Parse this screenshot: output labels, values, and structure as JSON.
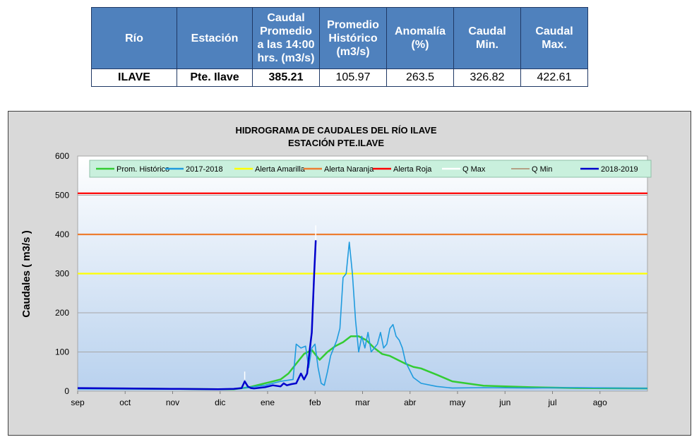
{
  "table": {
    "headers": [
      "Río",
      "Estación",
      "Caudal Promedio a las 14:00 hrs. (m3/s)",
      "Promedio Histórico (m3/s)",
      "Anomalía (%)",
      "Caudal Min.",
      "Caudal Max."
    ],
    "row": {
      "rio": "ILAVE",
      "estacion": "Pte. Ilave",
      "caudal_promedio": "385.21",
      "promedio_historico": "105.97",
      "anomalia": "263.5",
      "caudal_min": "326.82",
      "caudal_max": "422.61"
    }
  },
  "chart_data": {
    "type": "line",
    "title": "HIDROGRAMA DE CAUDALES DEL RÍO ILAVE",
    "subtitle": "ESTACIÓN  PTE.ILAVE",
    "ylabel": "Caudales ( m3/s )",
    "xlabel": "",
    "ylim": [
      0,
      600
    ],
    "yticks": [
      "0",
      "100",
      "200",
      "300",
      "400",
      "500",
      "600"
    ],
    "xtick_labels": [
      "sep",
      "oct",
      "nov",
      "dic",
      "ene",
      "feb",
      "mar",
      "abr",
      "may",
      "jun",
      "jul",
      "ago"
    ],
    "grid": true,
    "legend_position": "top",
    "colors": {
      "prom_historico": "#33cc33",
      "y2017_2018": "#1f9bde",
      "alerta_amarilla": "#ffff00",
      "alerta_naranja": "#ed7d31",
      "alerta_roja": "#ff0000",
      "q_max": "#ffffff",
      "q_min": "#a0522d",
      "y2018_2019": "#0000cc"
    },
    "series": [
      {
        "key": "prom_historico",
        "name": "Prom. Histórico",
        "x": [
          0,
          60,
          90,
          100,
          110,
          120,
          130,
          135,
          140,
          145,
          150,
          155,
          160,
          165,
          170,
          175,
          180,
          185,
          190,
          195,
          200,
          205,
          210,
          215,
          220,
          230,
          240,
          260,
          290,
          320,
          365
        ],
        "y": [
          7,
          6,
          5,
          5,
          10,
          20,
          30,
          45,
          70,
          95,
          105,
          80,
          100,
          115,
          125,
          140,
          140,
          130,
          110,
          95,
          90,
          80,
          70,
          62,
          58,
          42,
          25,
          14,
          10,
          8,
          7
        ]
      },
      {
        "key": "y2017_2018",
        "name": "2017-2018",
        "x": [
          0,
          60,
          90,
          100,
          110,
          120,
          130,
          138,
          140,
          143,
          146,
          148,
          150,
          152,
          154,
          156,
          158,
          160,
          162,
          164,
          166,
          168,
          170,
          172,
          174,
          176,
          178,
          180,
          182,
          184,
          186,
          188,
          190,
          192,
          194,
          196,
          198,
          200,
          202,
          204,
          206,
          208,
          210,
          215,
          220,
          230,
          240,
          260,
          290,
          320,
          365
        ],
        "y": [
          6,
          5,
          5,
          5,
          10,
          15,
          25,
          30,
          120,
          110,
          115,
          60,
          110,
          120,
          60,
          20,
          15,
          50,
          90,
          110,
          130,
          160,
          290,
          300,
          380,
          300,
          180,
          100,
          140,
          110,
          150,
          100,
          110,
          120,
          150,
          110,
          120,
          160,
          170,
          140,
          130,
          110,
          75,
          35,
          20,
          12,
          8,
          9,
          8,
          9,
          7
        ]
      },
      {
        "key": "y2018_2019",
        "name": "2018-2019",
        "x": [
          0,
          30,
          60,
          90,
          100,
          105,
          107,
          109,
          111,
          113,
          120,
          125,
          130,
          132,
          134,
          137,
          140,
          143,
          145,
          147,
          148.5,
          150,
          151.5,
          152.5
        ],
        "y": [
          8,
          7,
          6,
          5,
          6,
          8,
          25,
          12,
          8,
          7,
          10,
          15,
          12,
          20,
          15,
          18,
          20,
          45,
          30,
          45,
          100,
          150,
          300,
          385
        ]
      },
      {
        "key": "q_max",
        "name": "Q Max",
        "x": [
          107,
          107,
          152.5,
          152.5
        ],
        "y": [
          30,
          50,
          385,
          423
        ]
      },
      {
        "key": "q_min",
        "name": "Q Min",
        "x": [],
        "y": []
      }
    ],
    "thresholds": [
      {
        "key": "alerta_amarilla",
        "name": "Alerta Amarilla",
        "value": 300
      },
      {
        "key": "alerta_naranja",
        "name": "Alerta Naranja",
        "value": 400
      },
      {
        "key": "alerta_roja",
        "name": "Alerta Roja",
        "value": 505
      }
    ],
    "legend_order": [
      "prom_historico",
      "y2017_2018",
      "alerta_amarilla",
      "alerta_naranja",
      "alerta_roja",
      "q_max",
      "q_min",
      "y2018_2019"
    ]
  }
}
